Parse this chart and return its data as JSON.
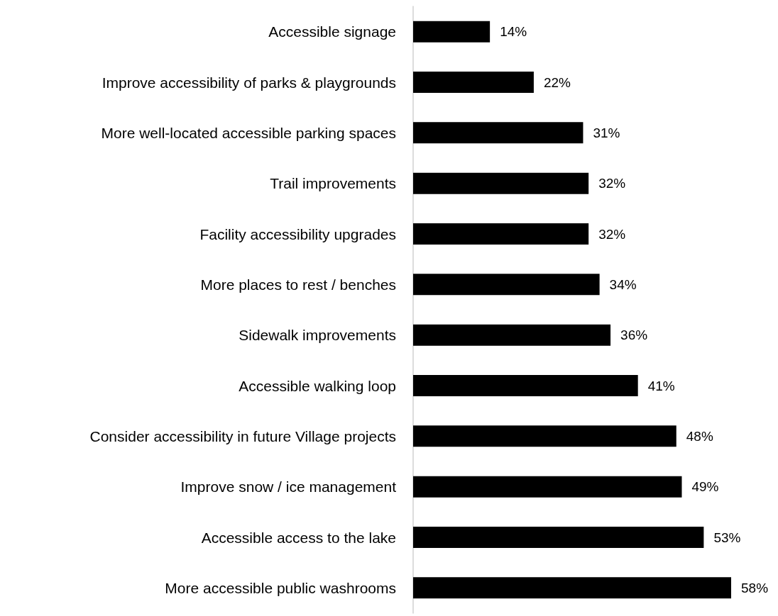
{
  "chart_data": {
    "type": "bar",
    "orientation": "horizontal",
    "categories": [
      "Accessible signage",
      "Improve accessibility of parks & playgrounds",
      "More well-located accessible parking spaces",
      "Trail improvements",
      "Facility accessibility upgrades",
      "More places to rest / benches",
      "Sidewalk improvements",
      "Accessible walking loop",
      "Consider accessibility in future Village projects",
      "Improve snow / ice management",
      "Accessible access to the lake",
      "More accessible public washrooms"
    ],
    "values": [
      14,
      22,
      31,
      32,
      32,
      34,
      36,
      41,
      48,
      49,
      53,
      58
    ],
    "value_labels": [
      "14%",
      "22%",
      "31%",
      "32%",
      "32%",
      "34%",
      "36%",
      "41%",
      "48%",
      "49%",
      "53%",
      "58%"
    ],
    "color": "#000000"
  }
}
